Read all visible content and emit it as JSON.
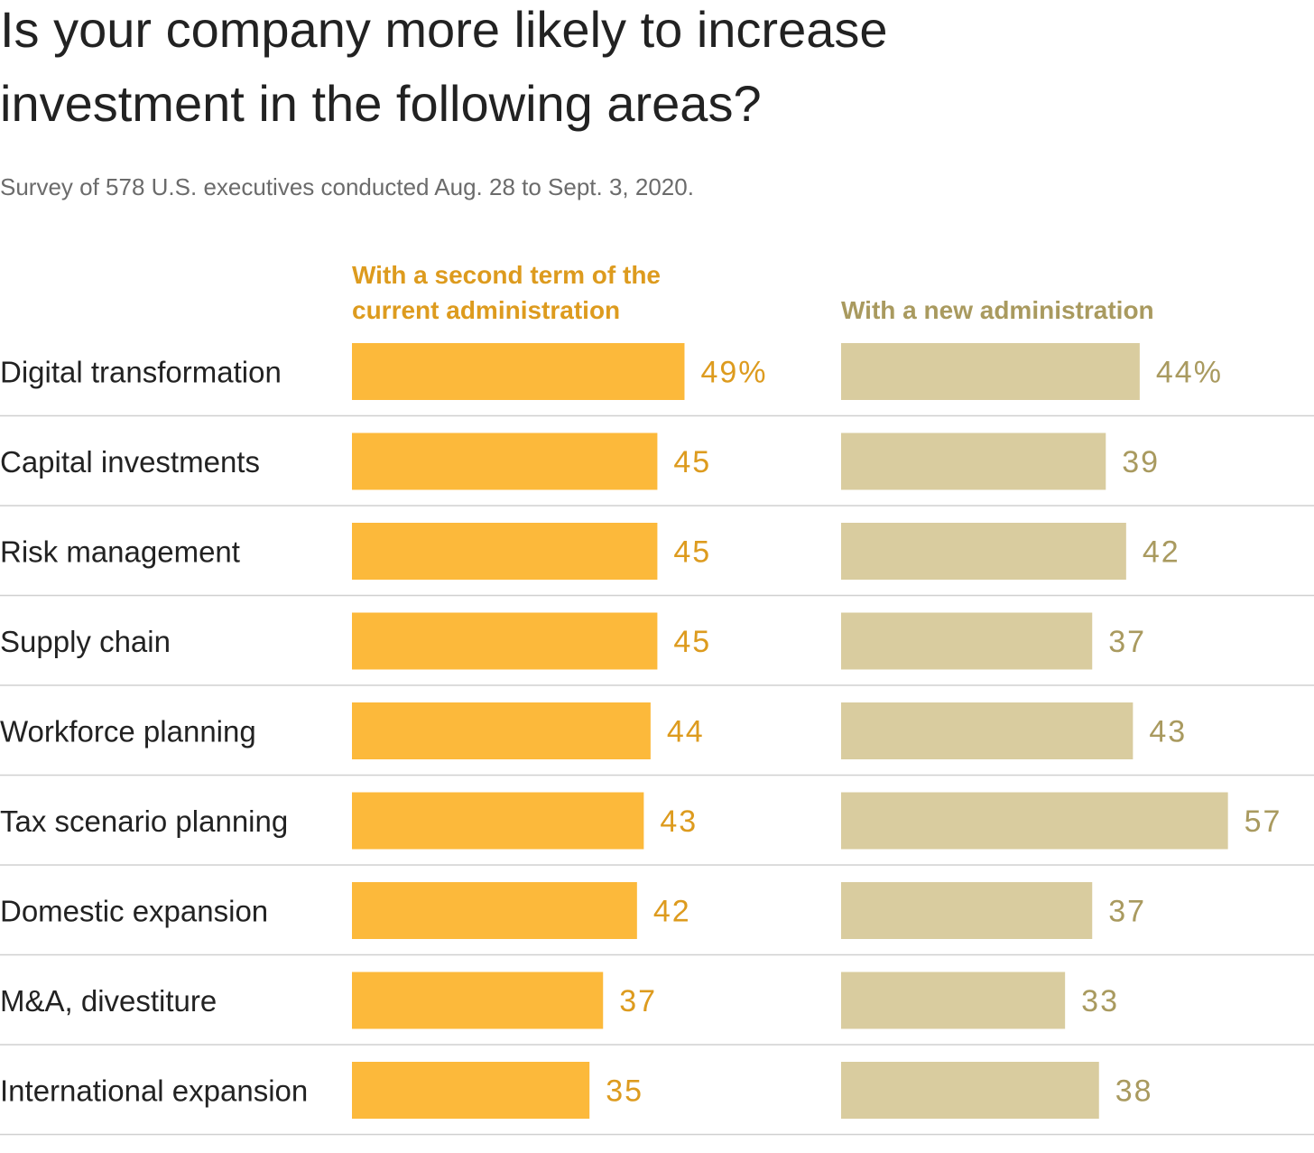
{
  "chart_data": {
    "type": "bar",
    "title": "Is your company more likely to increase investment in the following areas?",
    "subtitle": "Survey of 578 U.S. executives conducted Aug. 28 to Sept. 3, 2020.",
    "categories": [
      "Digital transformation",
      "Capital investments",
      "Risk management",
      "Supply chain",
      "Workforce planning",
      "Tax scenario planning",
      "Domestic expansion",
      "M&A, divestiture",
      "International expansion"
    ],
    "series": [
      {
        "name": "With a second term of the current administration",
        "values": [
          49,
          45,
          45,
          45,
          44,
          43,
          42,
          37,
          35
        ],
        "labels": [
          "49%",
          "45",
          "45",
          "45",
          "44",
          "43",
          "42",
          "37",
          "35"
        ],
        "bar_color": "#fcb93b",
        "text_color": "#dd9b1e"
      },
      {
        "name": "With a new administration",
        "values": [
          44,
          39,
          42,
          37,
          43,
          57,
          37,
          33,
          38
        ],
        "labels": [
          "44%",
          "39",
          "42",
          "37",
          "43",
          "57",
          "37",
          "33",
          "38"
        ],
        "bar_color": "#d9cc9f",
        "text_color": "#a99a5f"
      }
    ],
    "unit": "%",
    "xlim": [
      0,
      100
    ],
    "grid": false,
    "row_dividers": true,
    "divider_color": "#d0d0d0"
  }
}
